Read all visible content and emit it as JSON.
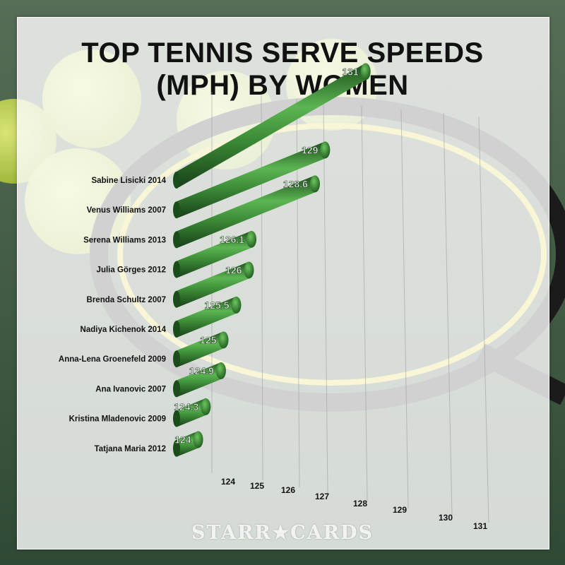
{
  "title_line1": "TOP TENNIS SERVE SPEEDS",
  "title_line2": "(MPH) BY WOMEN",
  "watermark": "STARR★CARDS",
  "colors": {
    "bar_dark": "#1f5a1f",
    "bar_mid": "#3f9a3a",
    "bar_light": "#6cc55e",
    "grid": "#9a9a9a"
  },
  "chart_data": {
    "type": "bar",
    "orientation": "horizontal",
    "title": "TOP TENNIS SERVE SPEEDS (MPH) BY WOMEN",
    "xlabel": "",
    "ylabel": "",
    "xlim": [
      124,
      131
    ],
    "x_ticks": [
      "124",
      "125",
      "126",
      "127",
      "128",
      "129",
      "130",
      "131"
    ],
    "categories": [
      "Sabine Lisicki 2014",
      "Venus Williams 2007",
      "Serena Williams 2013",
      "Julia Görges 2012",
      "Brenda Schultz 2007",
      "Nadiya Kichenok 2014",
      "Anna-Lena Groenefeld 2009",
      "Ana Ivanovic 2007",
      "Kristina Mladenovic 2009",
      "Tatjana Maria 2012"
    ],
    "values": [
      131,
      129,
      128.6,
      126.1,
      126,
      125.5,
      125,
      124.9,
      124.3,
      124
    ],
    "value_labels": [
      "131",
      "129",
      "128.6",
      "126.1",
      "126",
      "125.5",
      "125",
      "124.9",
      "124.3",
      "124"
    ],
    "grid": true,
    "legend": "none"
  }
}
